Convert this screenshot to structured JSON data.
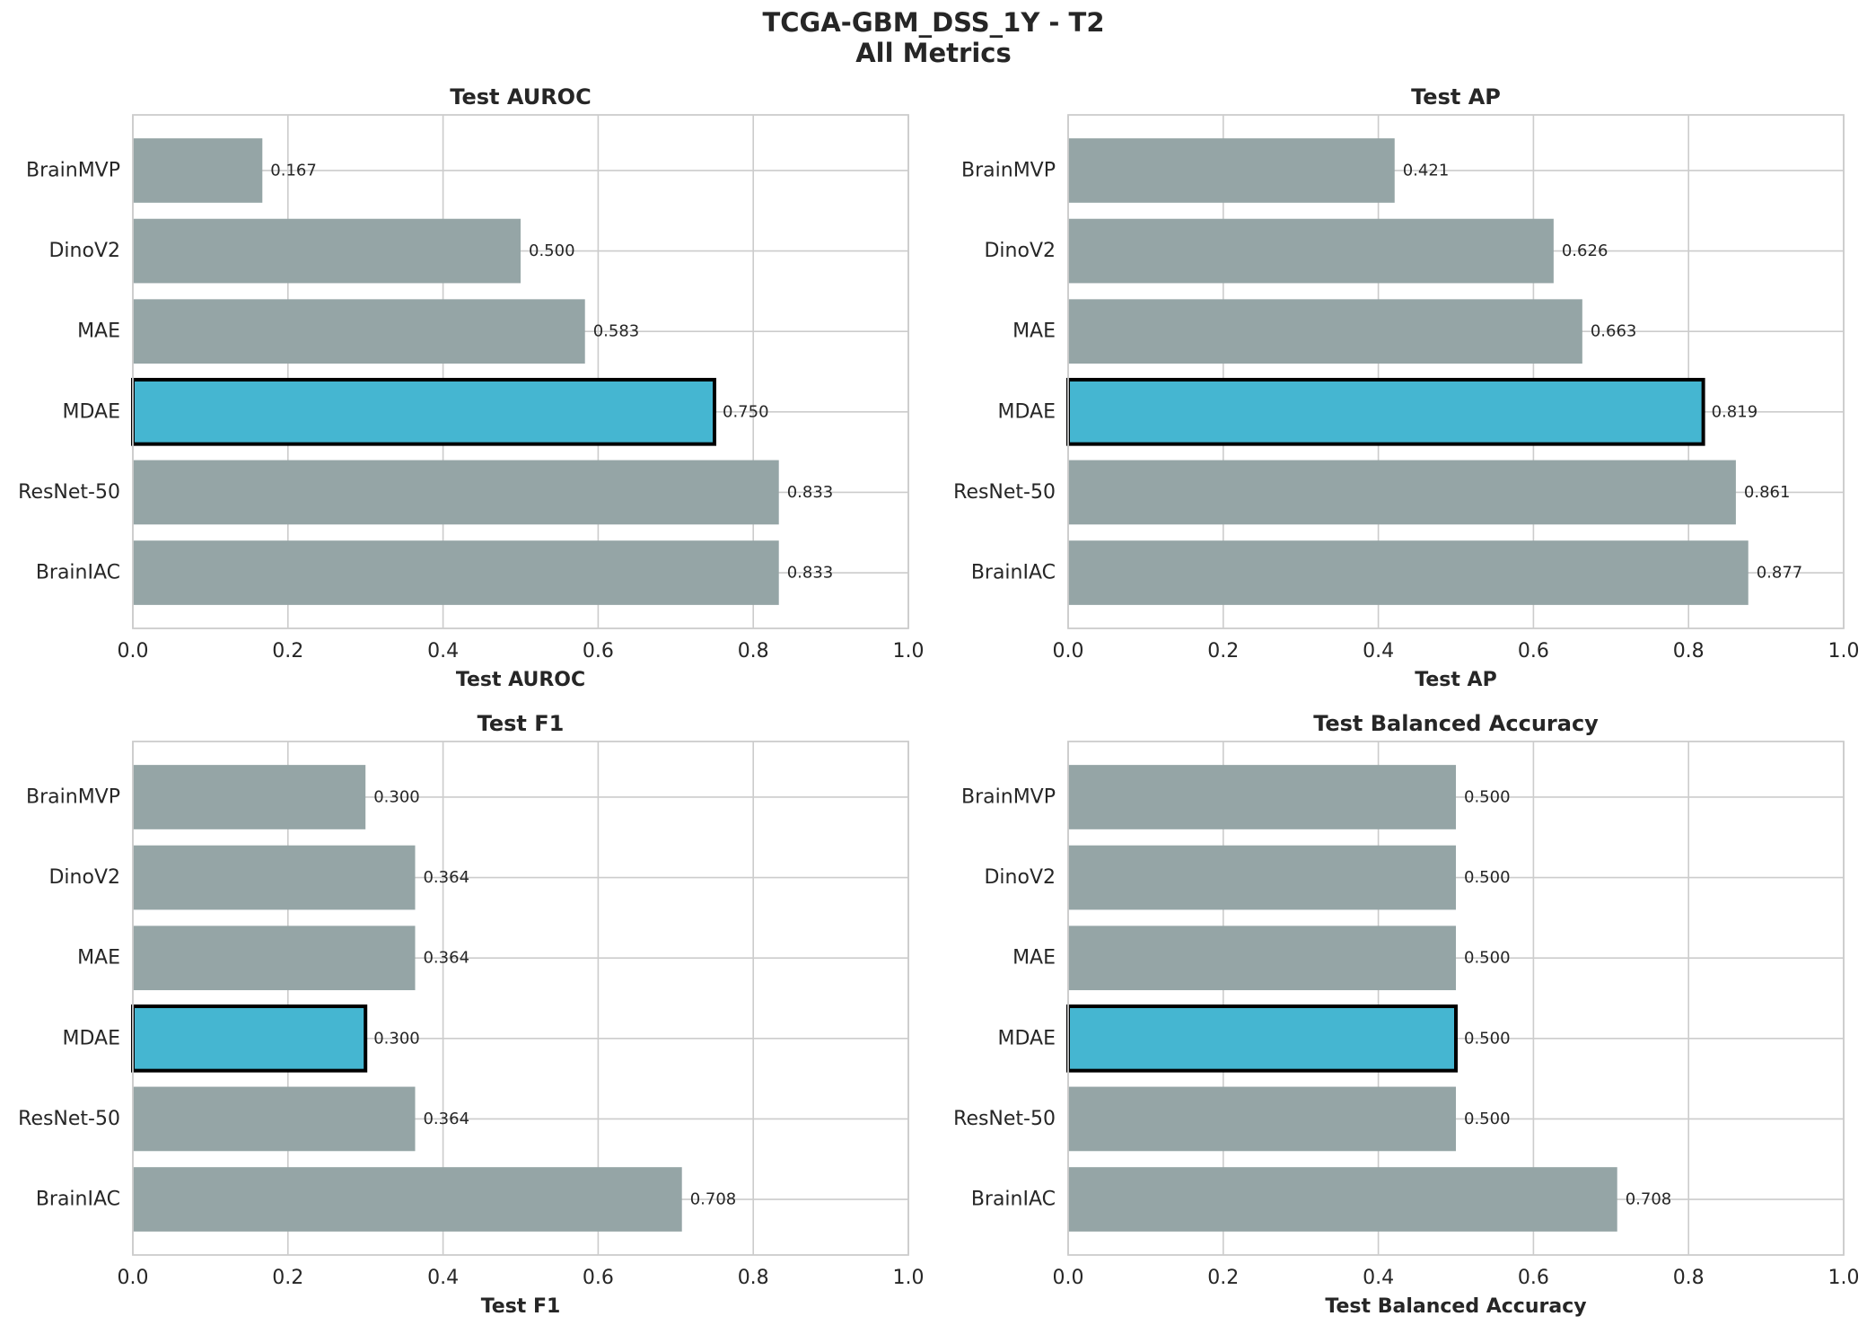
{
  "figure": {
    "title_line1": "TCGA-GBM_DSS_1Y - T2",
    "title_line2": "All Metrics"
  },
  "colors": {
    "bar": "#95a5a6",
    "highlight": "#45b6d1",
    "highlight_edge": "#000000",
    "grid": "#cccccc",
    "spine": "#cccccc"
  },
  "chart_data": [
    {
      "type": "bar",
      "orientation": "horizontal",
      "title": "Test AUROC",
      "xlabel": "Test AUROC",
      "categories": [
        "BrainMVP",
        "DinoV2",
        "MAE",
        "MDAE",
        "ResNet-50",
        "BrainIAC"
      ],
      "values": [
        0.167,
        0.5,
        0.583,
        0.75,
        0.833,
        0.833
      ],
      "value_labels": [
        "0.167",
        "0.500",
        "0.583",
        "0.750",
        "0.833",
        "0.833"
      ],
      "highlight": "MDAE",
      "xlim": [
        0,
        1.0
      ],
      "xticks": [
        "0.0",
        "0.2",
        "0.4",
        "0.6",
        "0.8",
        "1.0"
      ],
      "grid": true
    },
    {
      "type": "bar",
      "orientation": "horizontal",
      "title": "Test AP",
      "xlabel": "Test AP",
      "categories": [
        "BrainMVP",
        "DinoV2",
        "MAE",
        "MDAE",
        "ResNet-50",
        "BrainIAC"
      ],
      "values": [
        0.421,
        0.626,
        0.663,
        0.819,
        0.861,
        0.877
      ],
      "value_labels": [
        "0.421",
        "0.626",
        "0.663",
        "0.819",
        "0.861",
        "0.877"
      ],
      "highlight": "MDAE",
      "xlim": [
        0,
        1.0
      ],
      "xticks": [
        "0.0",
        "0.2",
        "0.4",
        "0.6",
        "0.8",
        "1.0"
      ],
      "grid": true
    },
    {
      "type": "bar",
      "orientation": "horizontal",
      "title": "Test F1",
      "xlabel": "Test F1",
      "categories": [
        "BrainMVP",
        "DinoV2",
        "MAE",
        "MDAE",
        "ResNet-50",
        "BrainIAC"
      ],
      "values": [
        0.3,
        0.364,
        0.364,
        0.3,
        0.364,
        0.708
      ],
      "value_labels": [
        "0.300",
        "0.364",
        "0.364",
        "0.300",
        "0.364",
        "0.708"
      ],
      "highlight": "MDAE",
      "xlim": [
        0,
        1.0
      ],
      "xticks": [
        "0.0",
        "0.2",
        "0.4",
        "0.6",
        "0.8",
        "1.0"
      ],
      "grid": true
    },
    {
      "type": "bar",
      "orientation": "horizontal",
      "title": "Test Balanced Accuracy",
      "xlabel": "Test Balanced Accuracy",
      "categories": [
        "BrainMVP",
        "DinoV2",
        "MAE",
        "MDAE",
        "ResNet-50",
        "BrainIAC"
      ],
      "values": [
        0.5,
        0.5,
        0.5,
        0.5,
        0.5,
        0.708
      ],
      "value_labels": [
        "0.500",
        "0.500",
        "0.500",
        "0.500",
        "0.500",
        "0.708"
      ],
      "highlight": "MDAE",
      "xlim": [
        0,
        1.0
      ],
      "xticks": [
        "0.0",
        "0.2",
        "0.4",
        "0.6",
        "0.8",
        "1.0"
      ],
      "grid": true
    }
  ]
}
